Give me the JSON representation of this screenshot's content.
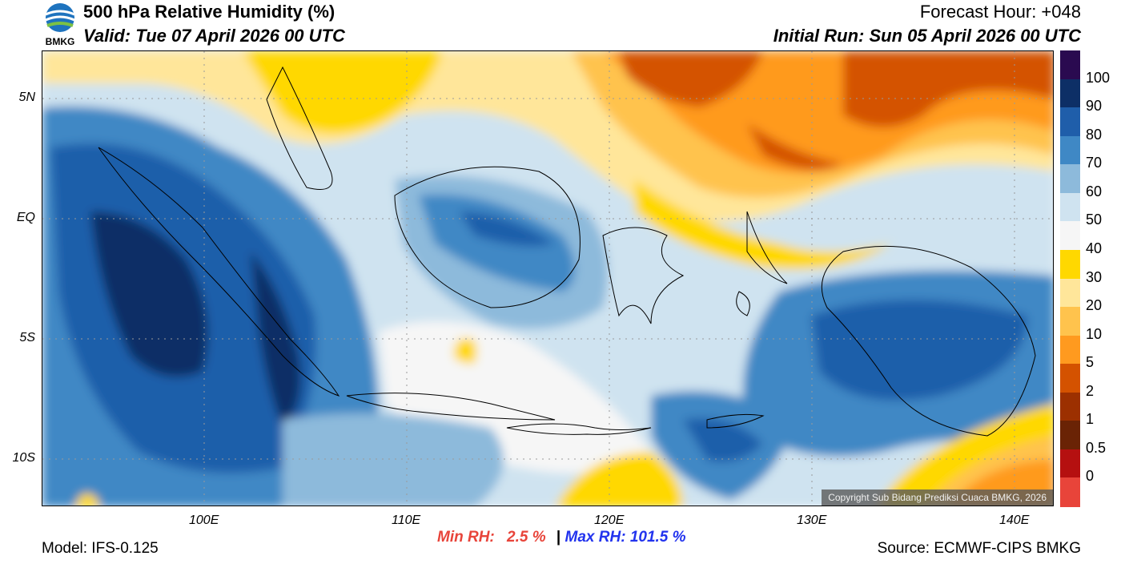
{
  "header": {
    "title": "500 hPa Relative Humidity (%)",
    "valid": "Valid: Tue 07 April 2026 00 UTC",
    "forecast_hour": "Forecast Hour: +048",
    "initial_run": "Initial Run: Sun 05 April 2026 00 UTC",
    "logo_text": "BMKG"
  },
  "axes": {
    "lat_labels": [
      "5N",
      "EQ",
      "5S",
      "10S"
    ],
    "lon_labels": [
      "100E",
      "110E",
      "120E",
      "130E",
      "140E"
    ]
  },
  "map": {
    "lon_range": [
      92,
      142
    ],
    "lat_range": [
      -12,
      7
    ],
    "copyright": "Copyright Sub Bidang Prediksi Cuaca BMKG, 2026"
  },
  "colorbar": {
    "labels": [
      "100",
      "90",
      "80",
      "70",
      "60",
      "50",
      "40",
      "30",
      "20",
      "10",
      "5",
      "2",
      "1",
      "0.5",
      "0"
    ],
    "colors": [
      "#2a0a50",
      "#0d2f66",
      "#1f5eaa",
      "#3f88c5",
      "#8dbadb",
      "#cfe3f0",
      "#f6f6f6",
      "#ffd800",
      "#ffe69a",
      "#ffc34d",
      "#ff9a1f",
      "#d45200",
      "#9c3000",
      "#6a2305",
      "#b51010",
      "#e8443a"
    ]
  },
  "stats": {
    "min_label": "Min RH:",
    "min_value": "2.5 %",
    "separator": "|",
    "max_label": "Max RH:",
    "max_value": "101.5 %"
  },
  "footer": {
    "model": "Model: IFS-0.125",
    "source": "Source: ECMWF-CIPS BMKG"
  }
}
